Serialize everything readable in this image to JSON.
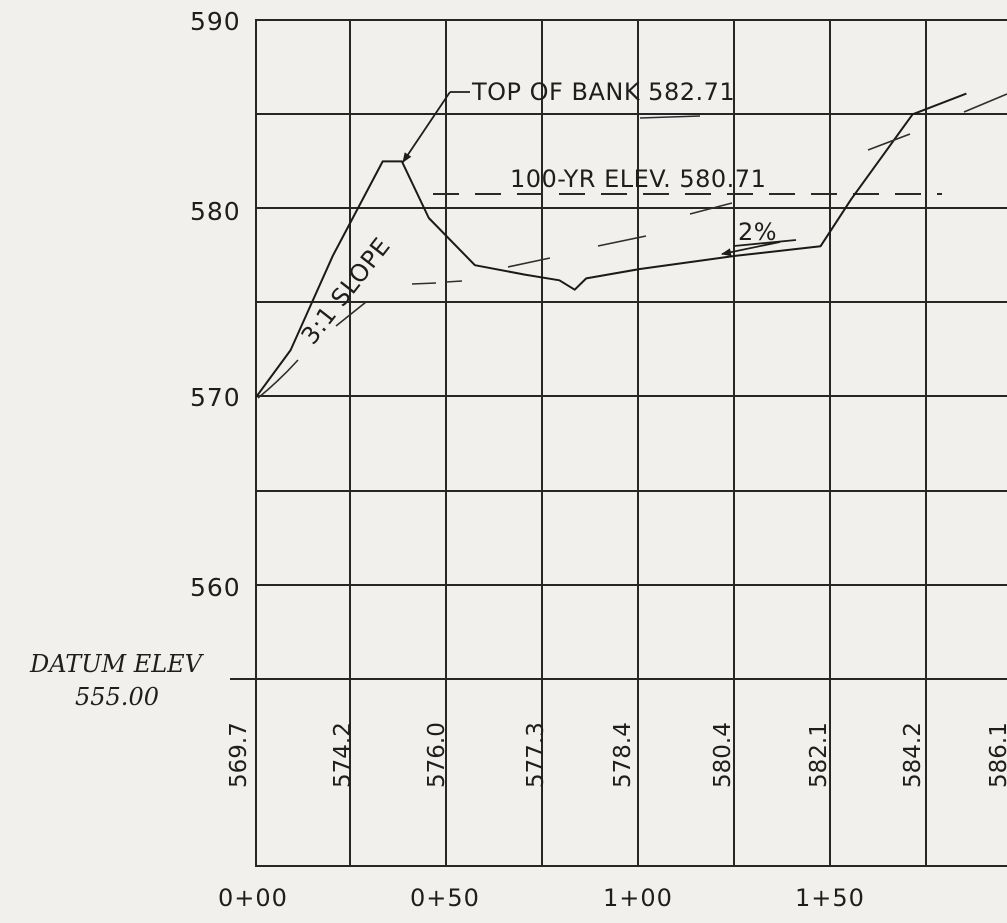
{
  "y_axis": {
    "labels": [
      "590",
      "580",
      "570",
      "560"
    ]
  },
  "datum": {
    "line1": "DATUM ELEV",
    "line2": "555.00"
  },
  "annotations": {
    "top_of_bank": "TOP OF BANK 582.71",
    "hundred_yr": "100-YR ELEV. 580.71",
    "slope_grade": "2%",
    "side_slope": "3:1 SLOPE"
  },
  "ground_elevations": [
    "569.7",
    "574.2",
    "576.0",
    "577.3",
    "578.4",
    "580.4",
    "582.1",
    "584.2",
    "586.1"
  ],
  "stations": [
    "0+00",
    "0+50",
    "1+00",
    "1+50"
  ],
  "chart_data": {
    "type": "line",
    "title": "",
    "xlabel": "",
    "ylabel": "",
    "ylim": [
      555,
      590
    ],
    "xlim": [
      0,
      195
    ],
    "grid": true,
    "series": [
      {
        "values_xy": [
          [
            0,
            570.0
          ],
          [
            9,
            572.5
          ],
          [
            20,
            577.5
          ],
          [
            33,
            582.5
          ],
          [
            38,
            582.5
          ],
          [
            45,
            579.5
          ],
          [
            57,
            577.0
          ],
          [
            70,
            576.5
          ],
          [
            79,
            576.2
          ],
          [
            83,
            575.7
          ],
          [
            86,
            576.3
          ],
          [
            100,
            576.8
          ],
          [
            125,
            577.5
          ],
          [
            147,
            578.0
          ],
          [
            155,
            580.5
          ],
          [
            171,
            585.0
          ],
          [
            185,
            586.1
          ]
        ]
      }
    ],
    "reference_lines": [
      {
        "label": "100-YR ELEV. 580.71",
        "y": 580.71
      }
    ],
    "annotations": [
      {
        "text": "TOP OF BANK 582.71",
        "value": 582.71
      },
      {
        "text": "2%"
      },
      {
        "text": "3:1 SLOPE"
      }
    ]
  }
}
